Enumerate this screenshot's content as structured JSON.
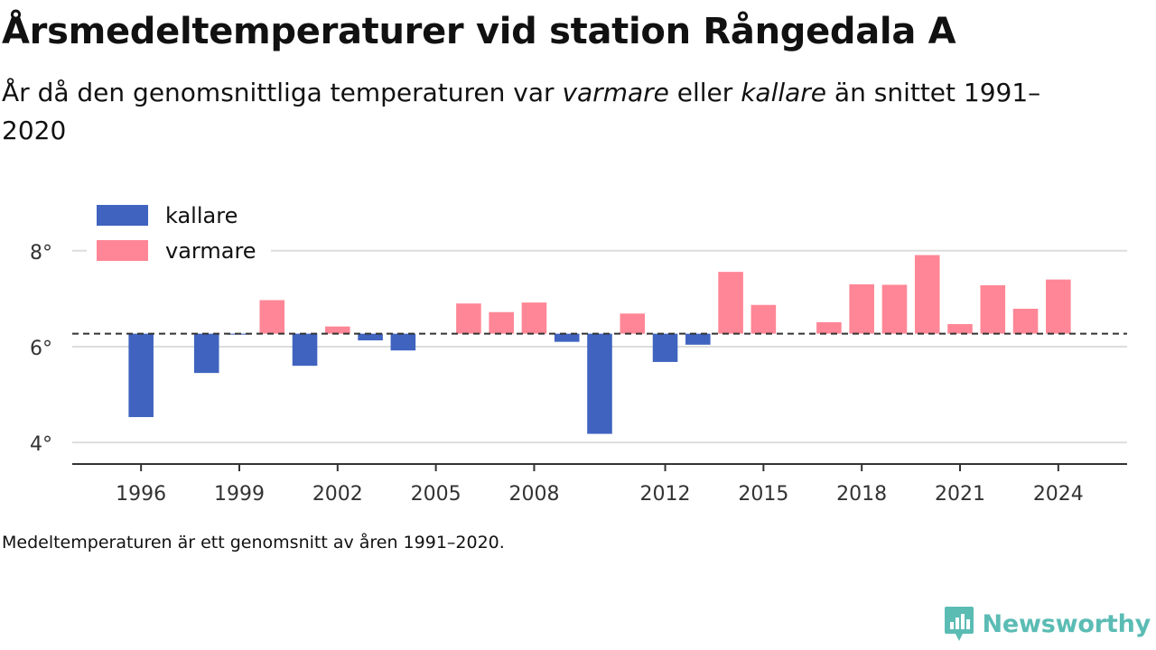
{
  "header": {
    "title": "Årsmedeltemperaturer vid station Rångedala A",
    "subtitle_part1": "År då den genomsnittliga temperaturen var ",
    "subtitle_warm": "varmare",
    "subtitle_part2": " eller ",
    "subtitle_cold": "kallare",
    "subtitle_part3": " än snittet 1991–2020"
  },
  "footnote": "Medeltemperaturen är ett genomsnitt av åren 1991–2020.",
  "brand": {
    "name": "Newsworthy",
    "icon": "newsworthy-logo-icon",
    "color": "#5bbcb4"
  },
  "chart_data": {
    "type": "bar",
    "baseline": 6.27,
    "ylim": [
      3.55,
      8.9
    ],
    "xlim": [
      1993.9,
      2026.1
    ],
    "yticks": [
      4,
      6,
      8
    ],
    "ytick_labels": [
      "4°",
      "6°",
      "8°"
    ],
    "xticks": [
      1996,
      1999,
      2002,
      2005,
      2008,
      2012,
      2015,
      2018,
      2021,
      2024
    ],
    "xtick_labels": [
      "1996",
      "1999",
      "2002",
      "2005",
      "2008",
      "2012",
      "2015",
      "2018",
      "2021",
      "2024"
    ],
    "legend": {
      "placement": "top-left",
      "items": [
        {
          "key": "cold",
          "label": "kallare"
        },
        {
          "key": "warm",
          "label": "varmare"
        }
      ]
    },
    "colors": {
      "cold": "#3f63bf",
      "warm": "#ff8696",
      "baseline": "#333333",
      "grid": "#dddddd",
      "axis": "#333333"
    },
    "x": [
      1996,
      1998,
      1999,
      2000,
      2001,
      2002,
      2003,
      2004,
      2006,
      2007,
      2008,
      2009,
      2010,
      2011,
      2012,
      2013,
      2014,
      2015,
      2017,
      2018,
      2019,
      2020,
      2021,
      2022,
      2023,
      2024
    ],
    "values": [
      4.53,
      5.45,
      6.25,
      6.97,
      5.6,
      6.42,
      6.13,
      5.92,
      6.9,
      6.72,
      6.92,
      6.1,
      4.18,
      6.69,
      5.68,
      6.04,
      7.56,
      6.87,
      6.51,
      7.3,
      7.29,
      7.91,
      6.47,
      7.28,
      6.79,
      7.4
    ]
  }
}
